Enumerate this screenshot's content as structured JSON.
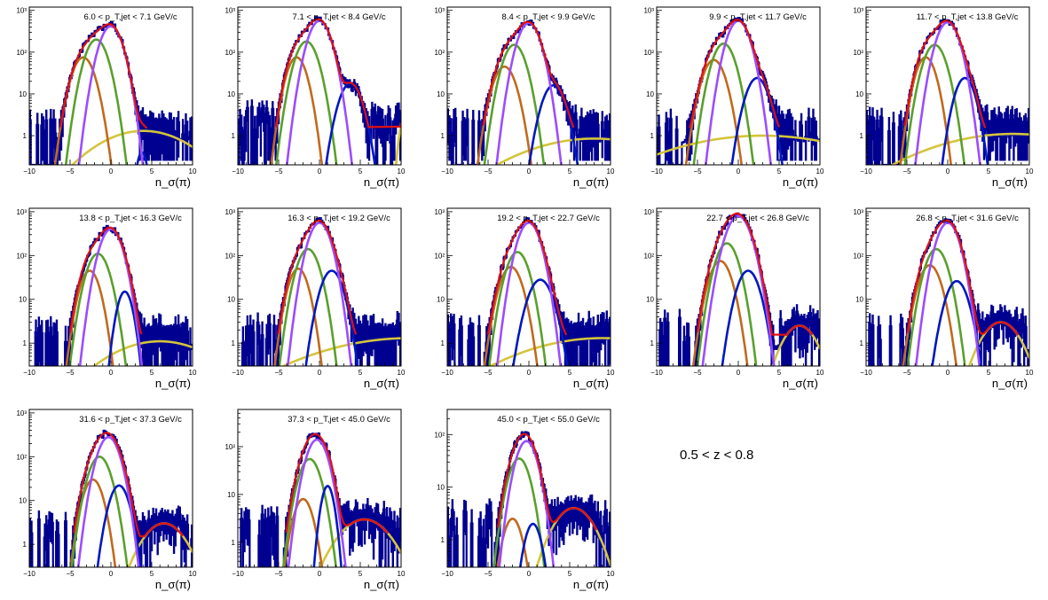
{
  "colors": {
    "histogram": "#000090",
    "total_fit": "#e01010",
    "pion": "#9b4dff",
    "kaon": "#5aa02c",
    "proton": "#c06a1e",
    "electron": "#0018c0",
    "background": "#d4c43c",
    "marker": "#000000"
  },
  "annotation": "0.5 < z < 0.8",
  "chart_data": [
    {
      "type": "line",
      "title": "6.0 < p_T,jet < 7.1 GeV/c",
      "xlabel": "n_σ(π)",
      "xlim": [
        -10,
        10
      ],
      "yscale": "log",
      "ylim": [
        0.2,
        1200
      ],
      "ytick_labels": [
        "1",
        "10",
        "10²",
        "10³"
      ],
      "xtick_labels": [
        "−10",
        "−5",
        "0",
        "5",
        "10"
      ],
      "series": [
        {
          "name": "pion",
          "mean": 0,
          "sigma": 1.0,
          "amp": 420
        },
        {
          "name": "kaon",
          "mean": -1.8,
          "sigma": 1.0,
          "amp": 200
        },
        {
          "name": "proton",
          "mean": -3.4,
          "sigma": 1.0,
          "amp": 75
        },
        {
          "name": "electron",
          "mean": 3.8,
          "sigma": 0.5,
          "amp": 0.4
        },
        {
          "name": "background",
          "mean": 4,
          "sigma": 4.5,
          "amp": 1.3
        }
      ],
      "tail_noise": 1.5
    },
    {
      "type": "line",
      "title": "7.1 < p_T,jet < 8.4 GeV/c",
      "xlabel": "n_σ(π)",
      "xlim": [
        -10,
        10
      ],
      "yscale": "log",
      "ylim": [
        0.2,
        1200
      ],
      "ytick_labels": [
        "1",
        "10",
        "10²",
        "10³"
      ],
      "xtick_labels": [
        "−10",
        "−5",
        "0",
        "5",
        "10"
      ],
      "series": [
        {
          "name": "pion",
          "mean": 0,
          "sigma": 1.0,
          "amp": 560
        },
        {
          "name": "kaon",
          "mean": -1.6,
          "sigma": 1.0,
          "amp": 180
        },
        {
          "name": "proton",
          "mean": -2.8,
          "sigma": 0.9,
          "amp": 75
        },
        {
          "name": "electron",
          "mean": 3.8,
          "sigma": 1.0,
          "amp": 18
        },
        {
          "name": "background",
          "mean": 11,
          "sigma": 0.6,
          "amp": 8
        }
      ],
      "tail_noise": 4
    },
    {
      "type": "line",
      "title": "8.4 < p_T,jet < 9.9 GeV/c",
      "xlabel": "n_σ(π)",
      "xlim": [
        -10,
        10
      ],
      "yscale": "log",
      "ylim": [
        0.2,
        1200
      ],
      "ytick_labels": [
        "1",
        "10",
        "10²",
        "10³"
      ],
      "xtick_labels": [
        "−10",
        "−5",
        "0",
        "5",
        "10"
      ],
      "series": [
        {
          "name": "pion",
          "mean": 0,
          "sigma": 1.0,
          "amp": 500
        },
        {
          "name": "kaon",
          "mean": -1.8,
          "sigma": 1.0,
          "amp": 150
        },
        {
          "name": "proton",
          "mean": -3.0,
          "sigma": 1.0,
          "amp": 45
        },
        {
          "name": "electron",
          "mean": 3.0,
          "sigma": 1.0,
          "amp": 16
        },
        {
          "name": "background",
          "mean": 8,
          "sigma": 7,
          "amp": 0.85
        }
      ],
      "tail_noise": 2
    },
    {
      "type": "line",
      "title": "9.9 < p_T,jet < 11.7 GeV/c",
      "xlabel": "n_σ(π)",
      "xlim": [
        -10,
        10
      ],
      "yscale": "log",
      "ylim": [
        0.2,
        1200
      ],
      "ytick_labels": [
        "1",
        "10",
        "10²",
        "10³"
      ],
      "xtick_labels": [
        "−10",
        "−5",
        "0",
        "5",
        "10"
      ],
      "series": [
        {
          "name": "pion",
          "mean": 0,
          "sigma": 1.0,
          "amp": 560
        },
        {
          "name": "kaon",
          "mean": -1.8,
          "sigma": 1.0,
          "amp": 160
        },
        {
          "name": "proton",
          "mean": -3.0,
          "sigma": 1.0,
          "amp": 65
        },
        {
          "name": "electron",
          "mean": 2.3,
          "sigma": 1.0,
          "amp": 24
        },
        {
          "name": "background",
          "mean": 3,
          "sigma": 9,
          "amp": 1.0
        }
      ],
      "tail_noise": 2
    },
    {
      "type": "line",
      "title": "11.7 < p_T,jet < 13.8 GeV/c",
      "xlabel": "n_σ(π)",
      "xlim": [
        -10,
        10
      ],
      "yscale": "log",
      "ylim": [
        0.2,
        1200
      ],
      "ytick_labels": [
        "1",
        "10",
        "10²",
        "10³"
      ],
      "xtick_labels": [
        "−10",
        "−5",
        "0",
        "5",
        "10"
      ],
      "series": [
        {
          "name": "pion",
          "mean": 0,
          "sigma": 1.0,
          "amp": 520
        },
        {
          "name": "kaon",
          "mean": -1.6,
          "sigma": 1.0,
          "amp": 150
        },
        {
          "name": "proton",
          "mean": -2.7,
          "sigma": 0.9,
          "amp": 75
        },
        {
          "name": "electron",
          "mean": 2.1,
          "sigma": 0.9,
          "amp": 24
        },
        {
          "name": "background",
          "mean": 8,
          "sigma": 8,
          "amp": 1.1
        }
      ],
      "tail_noise": 2
    },
    {
      "type": "line",
      "title": "13.8 < p_T,jet < 16.3 GeV/c",
      "xlabel": "n_σ(π)",
      "xlim": [
        -10,
        10
      ],
      "yscale": "log",
      "ylim": [
        0.3,
        1200
      ],
      "ytick_labels": [
        "1",
        "10",
        "10²",
        "10³"
      ],
      "xtick_labels": [
        "−10",
        "−5",
        "0",
        "5",
        "10"
      ],
      "series": [
        {
          "name": "pion",
          "mean": 0,
          "sigma": 1.0,
          "amp": 400
        },
        {
          "name": "kaon",
          "mean": -1.6,
          "sigma": 1.0,
          "amp": 110
        },
        {
          "name": "proton",
          "mean": -2.6,
          "sigma": 0.9,
          "amp": 45
        },
        {
          "name": "electron",
          "mean": 1.7,
          "sigma": 0.7,
          "amp": 15
        },
        {
          "name": "background",
          "mean": 6,
          "sigma": 5,
          "amp": 1.1
        }
      ],
      "tail_noise": 1.5
    },
    {
      "type": "line",
      "title": "16.3 < p_T,jet < 19.2 GeV/c",
      "xlabel": "n_σ(π)",
      "xlim": [
        -10,
        10
      ],
      "yscale": "log",
      "ylim": [
        0.3,
        1200
      ],
      "ytick_labels": [
        "1",
        "10",
        "10²",
        "10³"
      ],
      "xtick_labels": [
        "−10",
        "−5",
        "0",
        "5",
        "10"
      ],
      "series": [
        {
          "name": "pion",
          "mean": 0,
          "sigma": 1.0,
          "amp": 560
        },
        {
          "name": "kaon",
          "mean": -1.4,
          "sigma": 1.0,
          "amp": 140
        },
        {
          "name": "proton",
          "mean": -2.6,
          "sigma": 0.9,
          "amp": 50
        },
        {
          "name": "electron",
          "mean": 1.5,
          "sigma": 1.0,
          "amp": 45
        },
        {
          "name": "background",
          "mean": 11,
          "sigma": 9,
          "amp": 1.3
        }
      ],
      "tail_noise": 2
    },
    {
      "type": "line",
      "title": "19.2 < p_T,jet < 22.7 GeV/c",
      "xlabel": "n_σ(π)",
      "xlim": [
        -10,
        10
      ],
      "yscale": "log",
      "ylim": [
        0.3,
        1200
      ],
      "ytick_labels": [
        "1",
        "10",
        "10²",
        "10³"
      ],
      "xtick_labels": [
        "−10",
        "−5",
        "0",
        "5",
        "10"
      ],
      "series": [
        {
          "name": "pion",
          "mean": 0,
          "sigma": 1.0,
          "amp": 560
        },
        {
          "name": "kaon",
          "mean": -1.4,
          "sigma": 1.0,
          "amp": 120
        },
        {
          "name": "proton",
          "mean": -2.2,
          "sigma": 1.0,
          "amp": 55
        },
        {
          "name": "electron",
          "mean": 1.4,
          "sigma": 1.1,
          "amp": 28
        },
        {
          "name": "background",
          "mean": 9,
          "sigma": 8,
          "amp": 1.3
        }
      ],
      "tail_noise": 2
    },
    {
      "type": "line",
      "title": "22.7 < p_T,jet < 26.8 GeV/c",
      "xlabel": "n_σ(π)",
      "xlim": [
        -10,
        10
      ],
      "yscale": "log",
      "ylim": [
        0.3,
        1200
      ],
      "ytick_labels": [
        "1",
        "10",
        "10²",
        "10³"
      ],
      "xtick_labels": [
        "−10",
        "−5",
        "0",
        "5",
        "10"
      ],
      "series": [
        {
          "name": "pion",
          "mean": 0,
          "sigma": 1.1,
          "amp": 800
        },
        {
          "name": "kaon",
          "mean": -1.4,
          "sigma": 1.0,
          "amp": 190
        },
        {
          "name": "proton",
          "mean": -2.2,
          "sigma": 1.0,
          "amp": 75
        },
        {
          "name": "electron",
          "mean": 1.2,
          "sigma": 1.0,
          "amp": 45
        },
        {
          "name": "background",
          "mean": 7.5,
          "sigma": 1.6,
          "amp": 2.5
        }
      ],
      "tail_noise": 3
    },
    {
      "type": "line",
      "title": "26.8 < p_T,jet < 31.6 GeV/c",
      "xlabel": "n_σ(π)",
      "xlim": [
        -10,
        10
      ],
      "yscale": "log",
      "ylim": [
        0.3,
        1200
      ],
      "ytick_labels": [
        "1",
        "10",
        "10²",
        "10³"
      ],
      "xtick_labels": [
        "−10",
        "−5",
        "0",
        "5",
        "10"
      ],
      "series": [
        {
          "name": "pion",
          "mean": 0,
          "sigma": 1.0,
          "amp": 560
        },
        {
          "name": "kaon",
          "mean": -1.4,
          "sigma": 1.0,
          "amp": 140
        },
        {
          "name": "proton",
          "mean": -2.2,
          "sigma": 1.0,
          "amp": 60
        },
        {
          "name": "electron",
          "mean": 1.1,
          "sigma": 1.0,
          "amp": 26
        },
        {
          "name": "background",
          "mean": 6.5,
          "sigma": 1.8,
          "amp": 3
        }
      ],
      "tail_noise": 3
    },
    {
      "type": "line",
      "title": "31.6 < p_T,jet < 37.3 GeV/c",
      "xlabel": "n_σ(π)",
      "xlim": [
        -10,
        10
      ],
      "yscale": "log",
      "ylim": [
        0.3,
        1200
      ],
      "ytick_labels": [
        "1",
        "10",
        "10²",
        "10³"
      ],
      "xtick_labels": [
        "−10",
        "−5",
        "0",
        "5",
        "10"
      ],
      "series": [
        {
          "name": "pion",
          "mean": -0.3,
          "sigma": 1.0,
          "amp": 280
        },
        {
          "name": "kaon",
          "mean": -1.4,
          "sigma": 1.0,
          "amp": 100
        },
        {
          "name": "proton",
          "mean": -2.2,
          "sigma": 0.9,
          "amp": 30
        },
        {
          "name": "electron",
          "mean": 1.0,
          "sigma": 0.9,
          "amp": 22
        },
        {
          "name": "background",
          "mean": 6.5,
          "sigma": 2.0,
          "amp": 3
        }
      ],
      "tail_noise": 3
    },
    {
      "type": "line",
      "title": "37.3 < p_T,jet < 45.0 GeV/c",
      "xlabel": "n_σ(π)",
      "xlim": [
        -10,
        10
      ],
      "yscale": "log",
      "ylim": [
        0.3,
        600
      ],
      "ytick_labels": [
        "1",
        "10",
        "10²"
      ],
      "xtick_labels": [
        "−10",
        "−5",
        "0",
        "5",
        "10"
      ],
      "series": [
        {
          "name": "pion",
          "mean": -0.3,
          "sigma": 1.0,
          "amp": 140
        },
        {
          "name": "kaon",
          "mean": -1.2,
          "sigma": 1.0,
          "amp": 55
        },
        {
          "name": "proton",
          "mean": -2.0,
          "sigma": 0.9,
          "amp": 8
        },
        {
          "name": "electron",
          "mean": 1.0,
          "sigma": 0.6,
          "amp": 15
        },
        {
          "name": "background",
          "mean": 5.5,
          "sigma": 2.5,
          "amp": 3
        }
      ],
      "tail_noise": 3
    },
    {
      "type": "line",
      "title": "45.0 < p_T,jet < 55.0 GeV/c",
      "xlabel": "n_σ(π)",
      "xlim": [
        -10,
        10
      ],
      "yscale": "log",
      "ylim": [
        0.3,
        300
      ],
      "ytick_labels": [
        "1",
        "10",
        "10²"
      ],
      "xtick_labels": [
        "−10",
        "−5",
        "0",
        "5",
        "10"
      ],
      "series": [
        {
          "name": "pion",
          "mean": -0.3,
          "sigma": 1.0,
          "amp": 75
        },
        {
          "name": "kaon",
          "mean": -1.2,
          "sigma": 1.0,
          "amp": 35
        },
        {
          "name": "proton",
          "mean": -2.0,
          "sigma": 0.9,
          "amp": 2.5
        },
        {
          "name": "electron",
          "mean": 0.5,
          "sigma": 0.8,
          "amp": 2
        },
        {
          "name": "background",
          "mean": 5.5,
          "sigma": 2.0,
          "amp": 4
        }
      ],
      "tail_noise": 3
    }
  ]
}
